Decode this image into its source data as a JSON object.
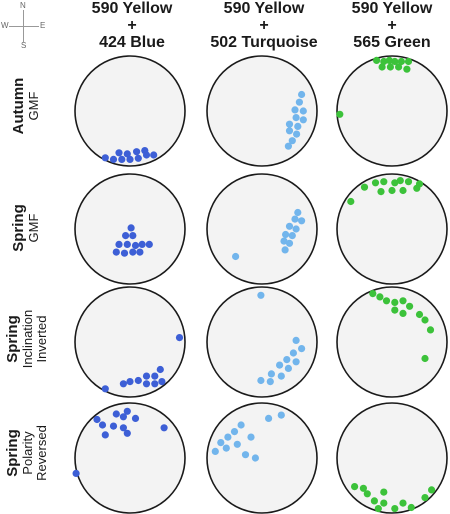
{
  "compass": {
    "n": "N",
    "s": "S",
    "e": "E",
    "w": "W"
  },
  "columns": [
    {
      "line1": "590 Yellow",
      "line2": "+",
      "line3": "424 Blue",
      "color": "#3d5fd6"
    },
    {
      "line1": "590 Yellow",
      "line2": "+",
      "line3": "502 Turquoise",
      "color": "#72b5ec"
    },
    {
      "line1": "590 Yellow",
      "line2": "+",
      "line3": "565 Green",
      "color": "#3cc23a"
    }
  ],
  "rows": [
    {
      "main": "Autumn",
      "sub1": "GMF",
      "sub2": ""
    },
    {
      "main": "Spring",
      "sub1": "GMF",
      "sub2": ""
    },
    {
      "main": "Spring",
      "sub1": "Inclination",
      "sub2": "Inverted"
    },
    {
      "main": "Spring",
      "sub1": "Polarity",
      "sub2": "Reversed"
    }
  ],
  "chart_data": {
    "type": "scatter",
    "coordinate_system": "normalized circle (x right, y up, radius 1)",
    "panels": [
      {
        "row": 0,
        "col": 0,
        "points": [
          [
            -0.45,
            -0.85
          ],
          [
            -0.3,
            -0.88
          ],
          [
            -0.15,
            -0.88
          ],
          [
            0.0,
            -0.88
          ],
          [
            0.15,
            -0.86
          ],
          [
            0.3,
            -0.8
          ],
          [
            0.43,
            -0.8
          ],
          [
            -0.2,
            -0.76
          ],
          [
            -0.05,
            -0.78
          ],
          [
            0.12,
            -0.74
          ],
          [
            0.27,
            -0.72
          ]
        ]
      },
      {
        "row": 0,
        "col": 1,
        "points": [
          [
            0.72,
            0.3
          ],
          [
            0.68,
            0.16
          ],
          [
            0.6,
            0.02
          ],
          [
            0.75,
            0.0
          ],
          [
            0.62,
            -0.12
          ],
          [
            0.75,
            -0.16
          ],
          [
            0.5,
            -0.24
          ],
          [
            0.65,
            -0.28
          ],
          [
            0.5,
            -0.36
          ],
          [
            0.63,
            -0.42
          ],
          [
            0.55,
            -0.54
          ],
          [
            0.48,
            -0.64
          ]
        ]
      },
      {
        "row": 0,
        "col": 2,
        "points": [
          [
            -0.28,
            0.92
          ],
          [
            -0.15,
            0.9
          ],
          [
            -0.05,
            0.92
          ],
          [
            0.05,
            0.9
          ],
          [
            0.17,
            0.9
          ],
          [
            0.3,
            0.9
          ],
          [
            -0.18,
            0.8
          ],
          [
            -0.03,
            0.8
          ],
          [
            0.12,
            0.8
          ],
          [
            0.27,
            0.76
          ],
          [
            -0.95,
            -0.06
          ]
        ]
      },
      {
        "row": 1,
        "col": 0,
        "points": [
          [
            0.02,
            0.02
          ],
          [
            -0.08,
            -0.12
          ],
          [
            0.05,
            -0.12
          ],
          [
            -0.2,
            -0.28
          ],
          [
            -0.05,
            -0.28
          ],
          [
            0.1,
            -0.3
          ],
          [
            0.22,
            -0.28
          ],
          [
            0.35,
            -0.28
          ],
          [
            -0.25,
            -0.42
          ],
          [
            -0.1,
            -0.44
          ],
          [
            0.05,
            -0.42
          ],
          [
            0.18,
            -0.42
          ]
        ]
      },
      {
        "row": 1,
        "col": 1,
        "points": [
          [
            0.65,
            0.3
          ],
          [
            0.6,
            0.18
          ],
          [
            0.72,
            0.15
          ],
          [
            0.5,
            0.05
          ],
          [
            0.62,
            0.0
          ],
          [
            0.43,
            -0.1
          ],
          [
            0.55,
            -0.12
          ],
          [
            0.4,
            -0.22
          ],
          [
            0.5,
            -0.26
          ],
          [
            0.42,
            -0.38
          ],
          [
            -0.48,
            -0.5
          ]
        ]
      },
      {
        "row": 1,
        "col": 2,
        "points": [
          [
            -0.5,
            0.76
          ],
          [
            -0.3,
            0.84
          ],
          [
            -0.15,
            0.86
          ],
          [
            0.05,
            0.84
          ],
          [
            0.15,
            0.88
          ],
          [
            0.3,
            0.86
          ],
          [
            0.5,
            0.82
          ],
          [
            -0.75,
            0.5
          ],
          [
            0.0,
            0.7
          ],
          [
            -0.2,
            0.68
          ],
          [
            0.2,
            0.7
          ],
          [
            0.45,
            0.74
          ]
        ]
      },
      {
        "row": 2,
        "col": 0,
        "points": [
          [
            0.9,
            0.08
          ],
          [
            0.55,
            -0.5
          ],
          [
            0.45,
            -0.62
          ],
          [
            0.3,
            -0.62
          ],
          [
            0.15,
            -0.7
          ],
          [
            0.0,
            -0.72
          ],
          [
            -0.12,
            -0.76
          ],
          [
            0.3,
            -0.76
          ],
          [
            0.45,
            -0.76
          ],
          [
            0.58,
            -0.72
          ],
          [
            -0.45,
            -0.85
          ]
        ]
      },
      {
        "row": 2,
        "col": 1,
        "points": [
          [
            -0.02,
            0.85
          ],
          [
            0.62,
            0.03
          ],
          [
            0.72,
            -0.12
          ],
          [
            0.57,
            -0.2
          ],
          [
            0.45,
            -0.32
          ],
          [
            0.62,
            -0.36
          ],
          [
            0.32,
            -0.42
          ],
          [
            0.48,
            -0.48
          ],
          [
            0.17,
            -0.58
          ],
          [
            0.35,
            -0.62
          ],
          [
            -0.02,
            -0.7
          ],
          [
            0.15,
            -0.72
          ]
        ]
      },
      {
        "row": 2,
        "col": 2,
        "points": [
          [
            -0.35,
            0.88
          ],
          [
            -0.22,
            0.82
          ],
          [
            -0.1,
            0.75
          ],
          [
            0.05,
            0.72
          ],
          [
            0.2,
            0.75
          ],
          [
            0.32,
            0.65
          ],
          [
            0.05,
            0.58
          ],
          [
            0.2,
            0.52
          ],
          [
            0.5,
            0.5
          ],
          [
            0.6,
            0.4
          ],
          [
            0.7,
            0.22
          ],
          [
            0.6,
            -0.3
          ]
        ]
      },
      {
        "row": 3,
        "col": 0,
        "points": [
          [
            -0.6,
            0.7
          ],
          [
            -0.5,
            0.6
          ],
          [
            -0.3,
            0.58
          ],
          [
            -0.25,
            0.8
          ],
          [
            -0.12,
            0.75
          ],
          [
            -0.05,
            0.85
          ],
          [
            0.1,
            0.72
          ],
          [
            -0.12,
            0.55
          ],
          [
            -0.05,
            0.45
          ],
          [
            -0.45,
            0.42
          ],
          [
            0.62,
            0.55
          ],
          [
            -0.98,
            -0.28
          ]
        ]
      },
      {
        "row": 3,
        "col": 1,
        "points": [
          [
            -0.85,
            0.12
          ],
          [
            -0.75,
            0.28
          ],
          [
            -0.62,
            0.38
          ],
          [
            -0.5,
            0.48
          ],
          [
            -0.38,
            0.6
          ],
          [
            -0.65,
            0.18
          ],
          [
            -0.45,
            0.25
          ],
          [
            -0.3,
            0.06
          ],
          [
            -0.12,
            0.0
          ],
          [
            -0.2,
            0.38
          ],
          [
            0.35,
            0.78
          ],
          [
            0.12,
            0.72
          ]
        ]
      },
      {
        "row": 3,
        "col": 2,
        "points": [
          [
            -0.68,
            -0.52
          ],
          [
            -0.52,
            -0.55
          ],
          [
            -0.45,
            -0.65
          ],
          [
            -0.32,
            -0.78
          ],
          [
            -0.15,
            -0.82
          ],
          [
            0.05,
            -0.92
          ],
          [
            0.2,
            -0.82
          ],
          [
            0.35,
            -0.9
          ],
          [
            0.6,
            -0.72
          ],
          [
            0.72,
            -0.58
          ],
          [
            -0.25,
            -0.92
          ],
          [
            -0.15,
            -0.62
          ]
        ]
      }
    ]
  }
}
